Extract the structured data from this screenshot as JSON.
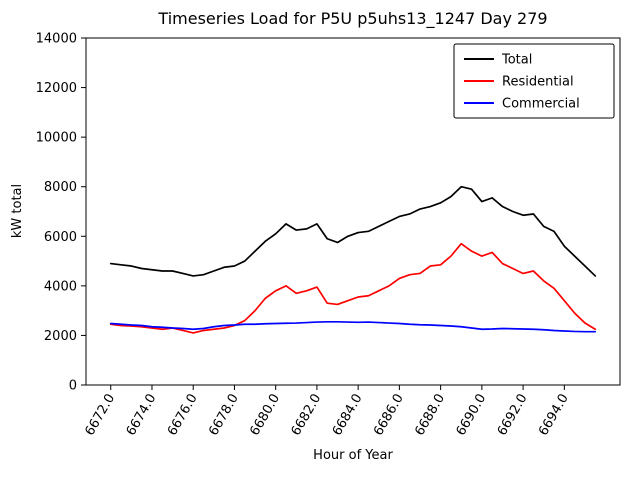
{
  "chart_data": {
    "type": "line",
    "title": "Timeseries Load for P5U p5uhs13_1247  Day 279",
    "xlabel": "Hour of Year",
    "ylabel": "kW total",
    "xlim": [
      6670.8,
      6696.7
    ],
    "ylim": [
      0,
      14000
    ],
    "xticks": [
      6672,
      6674,
      6676,
      6678,
      6680,
      6682,
      6684,
      6686,
      6688,
      6690,
      6692,
      6694
    ],
    "xtick_labels": [
      "6672.0",
      "6674.0",
      "6676.0",
      "6678.0",
      "6680.0",
      "6682.0",
      "6684.0",
      "6686.0",
      "6688.0",
      "6690.0",
      "6692.0",
      "6694.0"
    ],
    "yticks": [
      0,
      2000,
      4000,
      6000,
      8000,
      10000,
      12000,
      14000
    ],
    "ytick_labels": [
      "0",
      "2000",
      "4000",
      "6000",
      "8000",
      "10000",
      "12000",
      "14000"
    ],
    "grid": false,
    "legend_position": "upper right",
    "x": [
      6672,
      6672.5,
      6673,
      6673.5,
      6674,
      6674.5,
      6675,
      6675.5,
      6676,
      6676.5,
      6677,
      6677.5,
      6678,
      6678.5,
      6679,
      6679.5,
      6680,
      6680.5,
      6681,
      6681.5,
      6682,
      6682.5,
      6683,
      6683.5,
      6684,
      6684.5,
      6685,
      6685.5,
      6686,
      6686.5,
      6687,
      6687.5,
      6688,
      6688.5,
      6689,
      6689.5,
      6690,
      6690.5,
      6691,
      6691.5,
      6692,
      6692.5,
      6693,
      6693.5,
      6694,
      6694.5,
      6695,
      6695.5
    ],
    "series": [
      {
        "name": "Total",
        "color": "#000000",
        "values": [
          4900,
          4850,
          4800,
          4700,
          4650,
          4600,
          4600,
          4500,
          4400,
          4450,
          4600,
          4750,
          4800,
          5000,
          5400,
          5800,
          6100,
          6500,
          6250,
          6300,
          6500,
          5900,
          5750,
          6000,
          6150,
          6200,
          6400,
          6600,
          6800,
          6900,
          7100,
          7200,
          7350,
          7600,
          8000,
          7900,
          7400,
          7550,
          7200,
          7000,
          6850,
          6900,
          6400,
          6200,
          5600,
          5200,
          4800,
          4400
        ]
      },
      {
        "name": "Residential",
        "color": "#ff0000",
        "values": [
          2450,
          2400,
          2380,
          2350,
          2300,
          2250,
          2300,
          2200,
          2100,
          2200,
          2250,
          2300,
          2400,
          2600,
          3000,
          3500,
          3800,
          4000,
          3700,
          3800,
          3950,
          3300,
          3250,
          3400,
          3550,
          3600,
          3800,
          4000,
          4300,
          4450,
          4500,
          4800,
          4850,
          5200,
          5700,
          5400,
          5200,
          5350,
          4900,
          4700,
          4500,
          4600,
          4200,
          3900,
          3400,
          2900,
          2500,
          2250
        ]
      },
      {
        "name": "Commercial",
        "color": "#0000ff",
        "values": [
          2480,
          2450,
          2420,
          2400,
          2350,
          2330,
          2300,
          2280,
          2250,
          2280,
          2350,
          2400,
          2420,
          2450,
          2450,
          2470,
          2480,
          2490,
          2500,
          2520,
          2540,
          2550,
          2550,
          2540,
          2530,
          2540,
          2520,
          2500,
          2480,
          2450,
          2430,
          2420,
          2400,
          2380,
          2350,
          2300,
          2250,
          2260,
          2280,
          2270,
          2260,
          2250,
          2230,
          2200,
          2180,
          2160,
          2150,
          2150
        ]
      }
    ]
  }
}
